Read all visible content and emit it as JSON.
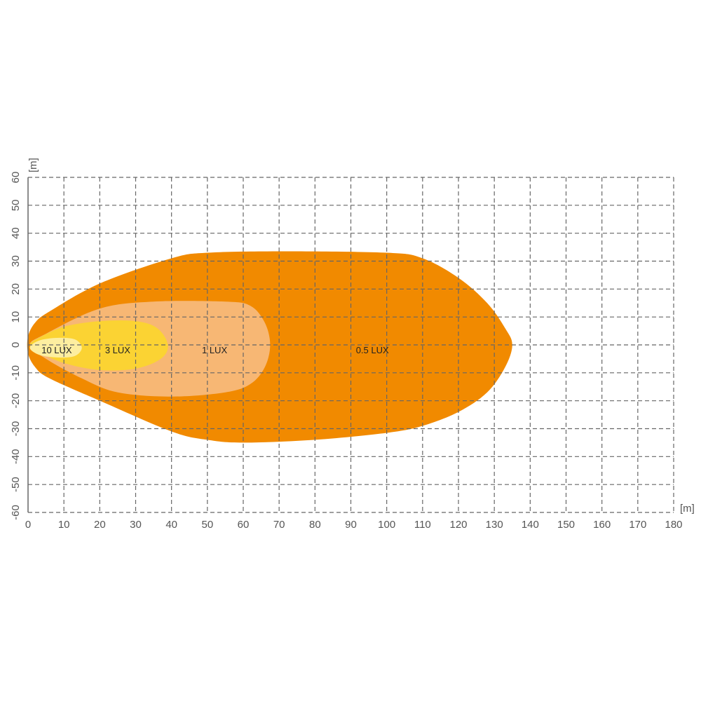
{
  "chart_data": {
    "type": "area",
    "title": "",
    "xlabel": "[m]",
    "ylabel": "[m]",
    "xlim": [
      0,
      180
    ],
    "ylim": [
      -60,
      60
    ],
    "xticks": [
      0,
      10,
      20,
      30,
      40,
      50,
      60,
      70,
      80,
      90,
      100,
      110,
      120,
      130,
      140,
      150,
      160,
      170,
      180
    ],
    "yticks": [
      60,
      50,
      40,
      30,
      20,
      10,
      0,
      -10,
      -20,
      -30,
      -40,
      -50,
      -60
    ],
    "grid": true,
    "contours": [
      {
        "name": "0.5 LUX",
        "color": "#f18a00",
        "label_at": [
          96,
          -2
        ],
        "points": [
          [
            0,
            3
          ],
          [
            2,
            8
          ],
          [
            6,
            12
          ],
          [
            20,
            22
          ],
          [
            40,
            31
          ],
          [
            50,
            33
          ],
          [
            70,
            33.5
          ],
          [
            100,
            33
          ],
          [
            110,
            31
          ],
          [
            120,
            24
          ],
          [
            128,
            15
          ],
          [
            133,
            6
          ],
          [
            135,
            0
          ],
          [
            133,
            -8
          ],
          [
            128,
            -17
          ],
          [
            120,
            -24
          ],
          [
            110,
            -29
          ],
          [
            100,
            -31.5
          ],
          [
            80,
            -34
          ],
          [
            60,
            -35
          ],
          [
            50,
            -34
          ],
          [
            40,
            -31
          ],
          [
            20,
            -20
          ],
          [
            6,
            -12
          ],
          [
            2,
            -8
          ],
          [
            0,
            -3
          ]
        ]
      },
      {
        "name": "1 LUX",
        "color": "#f7b774",
        "label_at": [
          52,
          -2
        ],
        "points": [
          [
            0.5,
            0
          ],
          [
            5,
            4
          ],
          [
            20,
            13
          ],
          [
            35,
            15.5
          ],
          [
            55,
            15.5
          ],
          [
            62,
            14
          ],
          [
            66,
            8
          ],
          [
            67.5,
            0
          ],
          [
            66,
            -8
          ],
          [
            62,
            -14
          ],
          [
            55,
            -17
          ],
          [
            40,
            -18.5
          ],
          [
            25,
            -17
          ],
          [
            15,
            -12
          ],
          [
            5,
            -5
          ]
        ]
      },
      {
        "name": "3 LUX",
        "color": "#fbd333",
        "label_at": [
          25,
          -2
        ],
        "points": [
          [
            0.5,
            0
          ],
          [
            3,
            2.5
          ],
          [
            10,
            6.5
          ],
          [
            20,
            8.5
          ],
          [
            30,
            8.5
          ],
          [
            36,
            6
          ],
          [
            39,
            0
          ],
          [
            37,
            -5
          ],
          [
            30,
            -8.5
          ],
          [
            20,
            -9
          ],
          [
            10,
            -6.5
          ],
          [
            3,
            -2.5
          ]
        ]
      },
      {
        "name": "10 LUX",
        "color": "#fdeea0",
        "label_at": [
          8,
          -2
        ],
        "points": [
          [
            0.5,
            -1
          ],
          [
            3,
            1.5
          ],
          [
            8,
            2.5
          ],
          [
            13,
            2
          ],
          [
            15,
            -1
          ],
          [
            13,
            -4
          ],
          [
            8,
            -4.5
          ],
          [
            3,
            -3.5
          ]
        ]
      }
    ]
  }
}
